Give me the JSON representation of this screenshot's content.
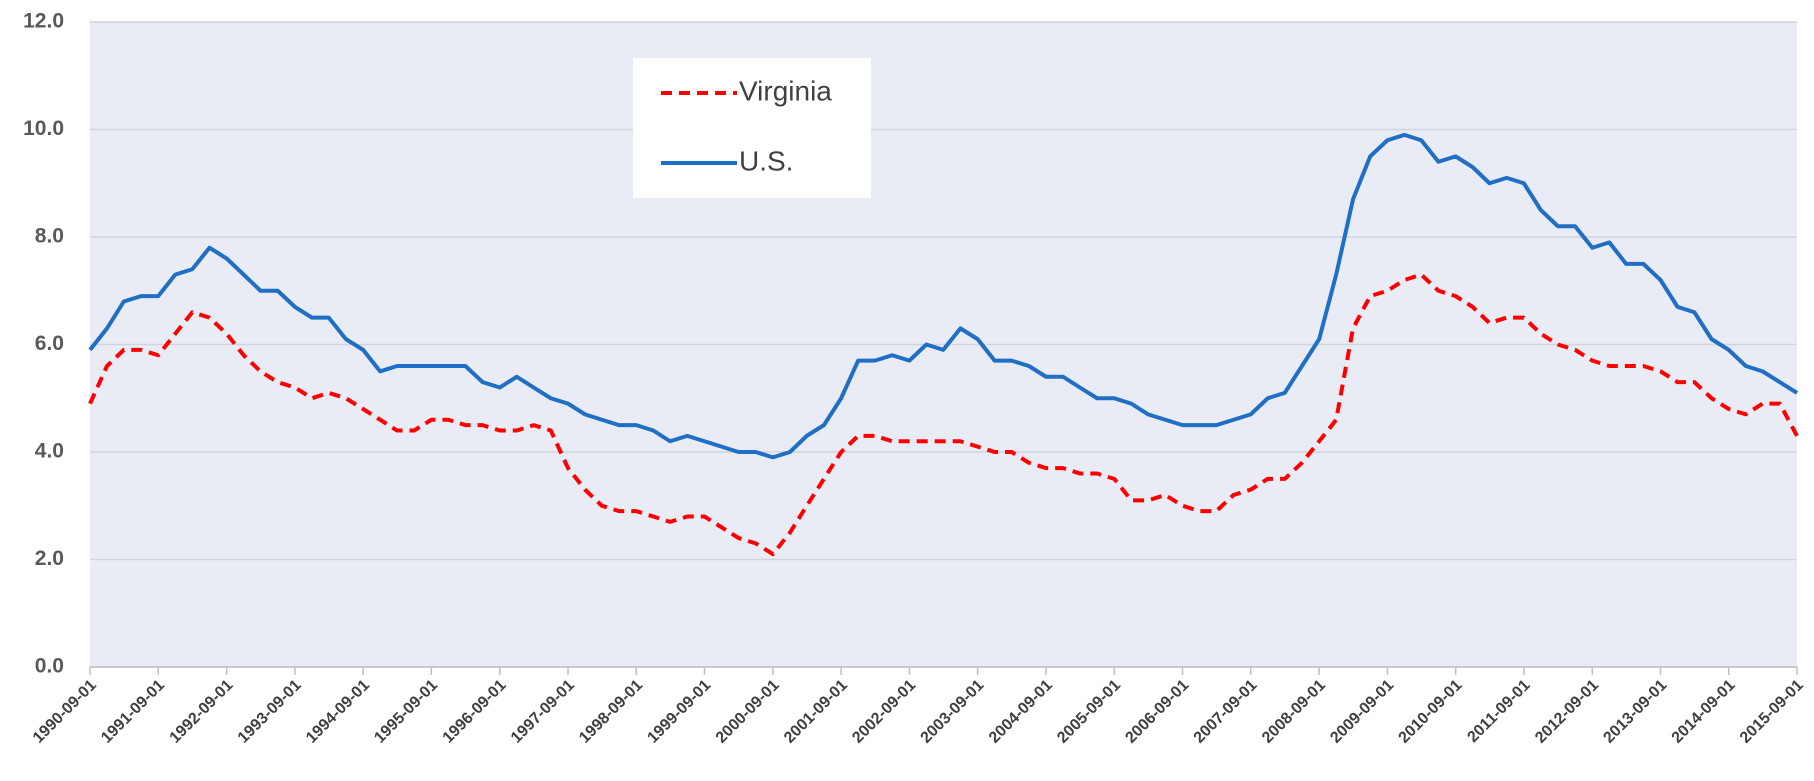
{
  "chart_data": {
    "type": "line",
    "x": [
      "1990-09-01",
      "1990-12-01",
      "1991-03-01",
      "1991-06-01",
      "1991-09-01",
      "1991-12-01",
      "1992-03-01",
      "1992-06-01",
      "1992-09-01",
      "1992-12-01",
      "1993-03-01",
      "1993-06-01",
      "1993-09-01",
      "1993-12-01",
      "1994-03-01",
      "1994-06-01",
      "1994-09-01",
      "1994-12-01",
      "1995-03-01",
      "1995-06-01",
      "1995-09-01",
      "1995-12-01",
      "1996-03-01",
      "1996-06-01",
      "1996-09-01",
      "1996-12-01",
      "1997-03-01",
      "1997-06-01",
      "1997-09-01",
      "1997-12-01",
      "1998-03-01",
      "1998-06-01",
      "1998-09-01",
      "1998-12-01",
      "1999-03-01",
      "1999-06-01",
      "1999-09-01",
      "1999-12-01",
      "2000-03-01",
      "2000-06-01",
      "2000-09-01",
      "2000-12-01",
      "2001-03-01",
      "2001-06-01",
      "2001-09-01",
      "2001-12-01",
      "2002-03-01",
      "2002-06-01",
      "2002-09-01",
      "2002-12-01",
      "2003-03-01",
      "2003-06-01",
      "2003-09-01",
      "2003-12-01",
      "2004-03-01",
      "2004-06-01",
      "2004-09-01",
      "2004-12-01",
      "2005-03-01",
      "2005-06-01",
      "2005-09-01",
      "2005-12-01",
      "2006-03-01",
      "2006-06-01",
      "2006-09-01",
      "2006-12-01",
      "2007-03-01",
      "2007-06-01",
      "2007-09-01",
      "2007-12-01",
      "2008-03-01",
      "2008-06-01",
      "2008-09-01",
      "2008-12-01",
      "2009-03-01",
      "2009-06-01",
      "2009-09-01",
      "2009-12-01",
      "2010-03-01",
      "2010-06-01",
      "2010-09-01",
      "2010-12-01",
      "2011-03-01",
      "2011-06-01",
      "2011-09-01",
      "2011-12-01",
      "2012-03-01",
      "2012-06-01",
      "2012-09-01",
      "2012-12-01",
      "2013-03-01",
      "2013-06-01",
      "2013-09-01",
      "2013-12-01",
      "2014-03-01",
      "2014-06-01",
      "2014-09-01",
      "2014-12-01",
      "2015-03-01",
      "2015-06-01",
      "2015-09-01"
    ],
    "series": [
      {
        "name": "Virginia",
        "color": "#ff0000",
        "dashed": true,
        "values": [
          4.9,
          5.6,
          5.9,
          5.9,
          5.8,
          6.2,
          6.6,
          6.5,
          6.2,
          5.8,
          5.5,
          5.3,
          5.2,
          5.0,
          5.1,
          5.0,
          4.8,
          4.6,
          4.4,
          4.4,
          4.6,
          4.6,
          4.5,
          4.5,
          4.4,
          4.4,
          4.5,
          4.4,
          3.7,
          3.3,
          3.0,
          2.9,
          2.9,
          2.8,
          2.7,
          2.8,
          2.8,
          2.6,
          2.4,
          2.3,
          2.1,
          2.5,
          3.0,
          3.5,
          4.0,
          4.3,
          4.3,
          4.2,
          4.2,
          4.2,
          4.2,
          4.2,
          4.1,
          4.0,
          4.0,
          3.8,
          3.7,
          3.7,
          3.6,
          3.6,
          3.5,
          3.1,
          3.1,
          3.2,
          3.0,
          2.9,
          2.9,
          3.2,
          3.3,
          3.5,
          3.5,
          3.8,
          4.2,
          4.6,
          6.3,
          6.9,
          7.0,
          7.2,
          7.3,
          7.0,
          6.9,
          6.7,
          6.4,
          6.5,
          6.5,
          6.2,
          6.0,
          5.9,
          5.7,
          5.6,
          5.6,
          5.6,
          5.5,
          5.3,
          5.3,
          5.0,
          4.8,
          4.7,
          4.9,
          4.9,
          4.3
        ]
      },
      {
        "name": "U.S.",
        "color": "#1f6fc5",
        "dashed": false,
        "values": [
          5.9,
          6.3,
          6.8,
          6.9,
          6.9,
          7.3,
          7.4,
          7.8,
          7.6,
          7.3,
          7.0,
          7.0,
          6.7,
          6.5,
          6.5,
          6.1,
          5.9,
          5.5,
          5.6,
          5.6,
          5.6,
          5.6,
          5.6,
          5.3,
          5.2,
          5.4,
          5.2,
          5.0,
          4.9,
          4.7,
          4.6,
          4.5,
          4.5,
          4.4,
          4.2,
          4.3,
          4.2,
          4.1,
          4.0,
          4.0,
          3.9,
          4.0,
          4.3,
          4.5,
          5.0,
          5.7,
          5.7,
          5.8,
          5.7,
          6.0,
          5.9,
          6.3,
          6.1,
          5.7,
          5.7,
          5.6,
          5.4,
          5.4,
          5.2,
          5.0,
          5.0,
          4.9,
          4.7,
          4.6,
          4.5,
          4.5,
          4.5,
          4.6,
          4.7,
          5.0,
          5.1,
          5.6,
          6.1,
          7.3,
          8.7,
          9.5,
          9.8,
          9.9,
          9.8,
          9.4,
          9.5,
          9.3,
          9.0,
          9.1,
          9.0,
          8.5,
          8.2,
          8.2,
          7.8,
          7.9,
          7.5,
          7.5,
          7.2,
          6.7,
          6.6,
          6.1,
          5.9,
          5.6,
          5.5,
          5.3,
          5.1
        ]
      }
    ],
    "xlim": [
      "1990-09-01",
      "2015-09-01"
    ],
    "xticks": [
      "1990-09-01",
      "1991-09-01",
      "1992-09-01",
      "1993-09-01",
      "1994-09-01",
      "1995-09-01",
      "1996-09-01",
      "1997-09-01",
      "1998-09-01",
      "1999-09-01",
      "2000-09-01",
      "2001-09-01",
      "2002-09-01",
      "2003-09-01",
      "2004-09-01",
      "2005-09-01",
      "2006-09-01",
      "2007-09-01",
      "2008-09-01",
      "2009-09-01",
      "2010-09-01",
      "2011-09-01",
      "2012-09-01",
      "2013-09-01",
      "2014-09-01",
      "2015-09-01"
    ],
    "ylim": [
      0,
      12
    ],
    "yticks": [
      {
        "value": 0,
        "label": "0.0"
      },
      {
        "value": 2,
        "label": "2.0"
      },
      {
        "value": 4,
        "label": "4.0"
      },
      {
        "value": 6,
        "label": "6.0"
      },
      {
        "value": 8,
        "label": "8.0"
      },
      {
        "value": 10,
        "label": "10.0"
      },
      {
        "value": 12,
        "label": "12.0"
      }
    ],
    "grid": true,
    "legend": "upper-left"
  }
}
